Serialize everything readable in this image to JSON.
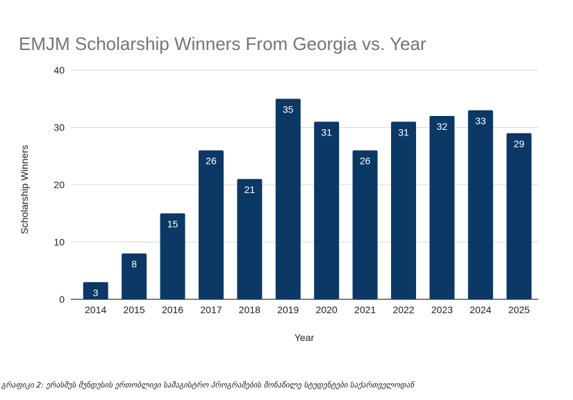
{
  "chart_data": {
    "type": "bar",
    "title": "EMJM Scholarship Winners From Georgia vs. Year",
    "xlabel": "Year",
    "ylabel": "Scholarship Winners",
    "categories": [
      "2014",
      "2015",
      "2016",
      "2017",
      "2018",
      "2019",
      "2020",
      "2021",
      "2022",
      "2023",
      "2024",
      "2025"
    ],
    "values": [
      3,
      8,
      15,
      26,
      21,
      35,
      31,
      26,
      31,
      32,
      33,
      29
    ],
    "ylim": [
      0,
      40
    ],
    "yticks": [
      0,
      10,
      20,
      30,
      40
    ],
    "grid": true,
    "data_labels": true,
    "colors": {
      "bar": "#0b3864",
      "title": "#757575",
      "grid": "#d9d9d9",
      "axis": "#333333",
      "label_text": "#ffffff"
    }
  },
  "caption": "გრაფიკი 2: ერასმუს მუნდუსის ერთობლივი სამაგისტრო პროგრამების მონაწილე სტუდენტები საქართველოდან"
}
